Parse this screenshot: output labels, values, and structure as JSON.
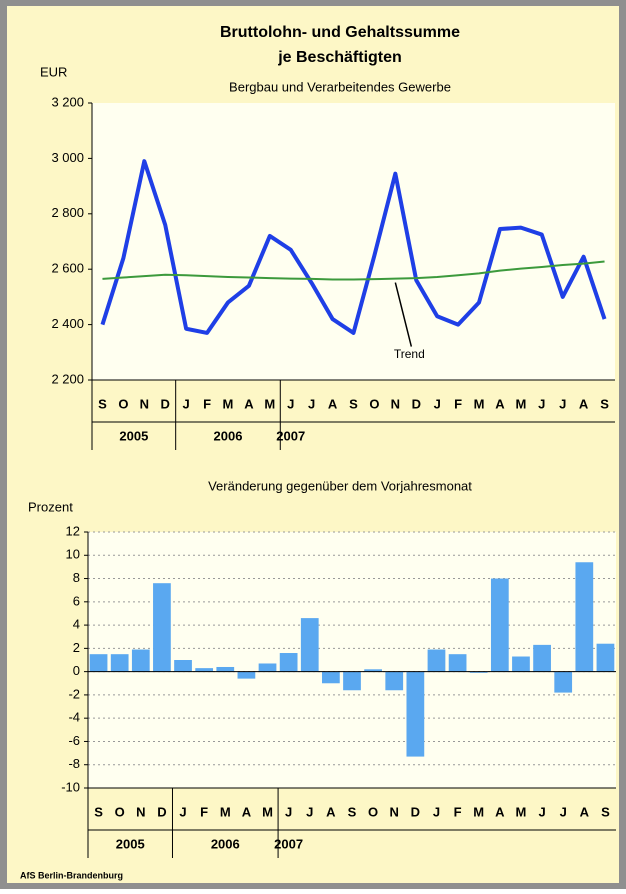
{
  "chart_data": [
    {
      "type": "line",
      "title": [
        "Bruttolohn- und Gehaltssumme",
        "je Beschäftigten"
      ],
      "subtitle": "Bergbau und Verarbeitendes Gewerbe",
      "y_label": "EUR",
      "categories": [
        "S",
        "O",
        "N",
        "D",
        "J",
        "F",
        "M",
        "A",
        "M",
        "J",
        "J",
        "A",
        "S",
        "O",
        "N",
        "D",
        "J",
        "F",
        "M",
        "A",
        "M",
        "J",
        "J",
        "A",
        "S"
      ],
      "years": [
        "2005",
        "2006",
        "2007"
      ],
      "series": [
        {
          "color": "#1f3fe6",
          "values": [
            2400,
            2640,
            2990,
            2760,
            2385,
            2370,
            2480,
            2540,
            2720,
            2670,
            2550,
            2420,
            2370,
            2650,
            2945,
            2560,
            2430,
            2400,
            2480,
            2745,
            2750,
            2725,
            2500,
            2645,
            2420
          ]
        },
        {
          "name": "Trend",
          "color": "#3c9a3c",
          "values": [
            2565,
            2570,
            2575,
            2580,
            2578,
            2575,
            2572,
            2570,
            2568,
            2566,
            2565,
            2563,
            2563,
            2564,
            2566,
            2568,
            2572,
            2578,
            2585,
            2595,
            2602,
            2608,
            2615,
            2620,
            2628
          ]
        }
      ],
      "ylim": [
        2200,
        3200
      ],
      "yticks": [
        {
          "value": 2200,
          "label": "2 200"
        },
        {
          "value": 2400,
          "label": "2 400"
        },
        {
          "value": 2600,
          "label": "2 600"
        },
        {
          "value": 2800,
          "label": "2 800"
        },
        {
          "value": 3000,
          "label": "3 000"
        },
        {
          "value": 3200,
          "label": "3 200"
        }
      ],
      "grid": false
    },
    {
      "type": "bar",
      "subtitle": "Veränderung gegenüber dem Vorjahresmonat",
      "y_label": "Prozent",
      "categories": [
        "S",
        "O",
        "N",
        "D",
        "J",
        "F",
        "M",
        "A",
        "M",
        "J",
        "J",
        "A",
        "S",
        "O",
        "N",
        "D",
        "J",
        "F",
        "M",
        "A",
        "M",
        "J",
        "J",
        "A",
        "S"
      ],
      "years": [
        "2005",
        "2006",
        "2007"
      ],
      "color": "#5aa8f0",
      "values": [
        1.5,
        1.5,
        1.9,
        7.6,
        1.0,
        0.3,
        0.4,
        -0.6,
        0.7,
        1.6,
        4.6,
        -1.0,
        -1.6,
        0.2,
        -1.6,
        -7.3,
        1.9,
        1.5,
        -0.1,
        8.0,
        1.3,
        2.3,
        -1.8,
        9.4,
        2.4
      ],
      "ylim": [
        -10,
        12
      ],
      "yticks": [
        -10,
        -8,
        -6,
        -4,
        -2,
        0,
        2,
        4,
        6,
        8,
        10,
        12
      ],
      "grid": true
    }
  ],
  "source": "AfS Berlin-Brandenburg"
}
